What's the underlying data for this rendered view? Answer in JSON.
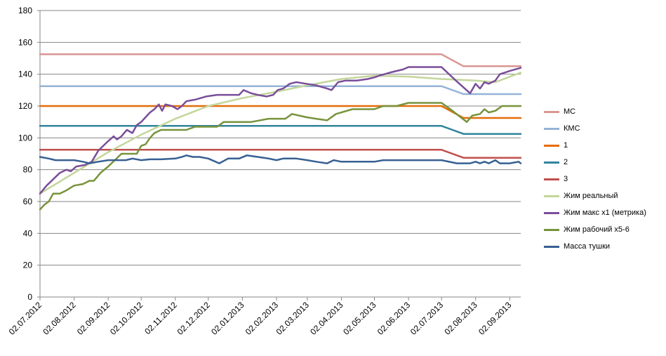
{
  "chart_data": {
    "type": "line",
    "ylim": [
      0,
      180
    ],
    "yticks": [
      0,
      20,
      40,
      60,
      80,
      100,
      120,
      140,
      160,
      180
    ],
    "x_date_range": [
      "2012-07-02",
      "2013-09-12"
    ],
    "x_tick_dates": [
      "2012-07-02",
      "2012-08-02",
      "2012-09-02",
      "2012-10-02",
      "2012-11-02",
      "2012-12-02",
      "2013-01-02",
      "2013-02-02",
      "2013-03-02",
      "2013-04-02",
      "2013-05-02",
      "2013-06-02",
      "2013-07-02",
      "2013-08-02",
      "2013-09-02"
    ],
    "x_tick_labels": [
      "02.07.2012",
      "02.08.2012",
      "02.09.2012",
      "02.10.2012",
      "02.11.2012",
      "02.12.2012",
      "02.01.2013",
      "02.02.2013",
      "02.03.2013",
      "02.04.2013",
      "02.05.2013",
      "02.06.2013",
      "02.07.2013",
      "02.08.2013",
      "02.09.2013"
    ],
    "grid": "horizontal",
    "legend_position": "right",
    "series": [
      {
        "name": "МС",
        "color": "#d99694",
        "points": [
          [
            "2012-07-02",
            152.5
          ],
          [
            "2013-07-02",
            152.5
          ],
          [
            "2013-07-22",
            145
          ],
          [
            "2013-09-12",
            145
          ]
        ]
      },
      {
        "name": "КМС",
        "color": "#95b3d7",
        "points": [
          [
            "2012-07-02",
            132.5
          ],
          [
            "2013-07-02",
            132.5
          ],
          [
            "2013-07-22",
            127.5
          ],
          [
            "2013-09-12",
            127.5
          ]
        ]
      },
      {
        "name": "1",
        "color": "#e46c0a",
        "points": [
          [
            "2012-07-02",
            120
          ],
          [
            "2013-07-02",
            120
          ],
          [
            "2013-07-22",
            112.5
          ],
          [
            "2013-09-12",
            112.5
          ]
        ]
      },
      {
        "name": "2",
        "color": "#31859c",
        "points": [
          [
            "2012-07-02",
            107.5
          ],
          [
            "2013-07-02",
            107.5
          ],
          [
            "2013-07-22",
            102.5
          ],
          [
            "2013-09-12",
            102.5
          ]
        ]
      },
      {
        "name": "3",
        "color": "#c0504d",
        "points": [
          [
            "2012-07-02",
            92.5
          ],
          [
            "2013-07-02",
            92.5
          ],
          [
            "2013-07-22",
            87.5
          ],
          [
            "2013-09-12",
            87.5
          ]
        ]
      },
      {
        "name": "Жим реальный",
        "color": "#c3d69b",
        "points": [
          [
            "2012-07-02",
            65
          ],
          [
            "2012-08-02",
            78
          ],
          [
            "2012-09-02",
            91
          ],
          [
            "2012-10-02",
            102
          ],
          [
            "2012-11-02",
            112
          ],
          [
            "2012-12-02",
            120
          ],
          [
            "2013-01-02",
            125
          ],
          [
            "2013-02-02",
            129
          ],
          [
            "2013-03-02",
            133
          ],
          [
            "2013-04-02",
            137
          ],
          [
            "2013-05-02",
            139
          ],
          [
            "2013-06-02",
            138.5
          ],
          [
            "2013-07-02",
            137
          ],
          [
            "2013-08-02",
            136
          ],
          [
            "2013-08-20",
            135
          ],
          [
            "2013-09-12",
            141
          ]
        ]
      },
      {
        "name": "Жим макс х1 (метрика)",
        "color": "#7a4e9a",
        "points": [
          [
            "2012-07-02",
            65
          ],
          [
            "2012-07-08",
            70
          ],
          [
            "2012-07-14",
            74
          ],
          [
            "2012-07-20",
            78
          ],
          [
            "2012-07-26",
            80
          ],
          [
            "2012-07-30",
            79
          ],
          [
            "2012-08-04",
            82
          ],
          [
            "2012-08-12",
            83
          ],
          [
            "2012-08-18",
            85
          ],
          [
            "2012-08-24",
            92
          ],
          [
            "2012-08-30",
            96
          ],
          [
            "2012-09-02",
            98
          ],
          [
            "2012-09-07",
            101
          ],
          [
            "2012-09-10",
            99
          ],
          [
            "2012-09-14",
            101
          ],
          [
            "2012-09-19",
            105
          ],
          [
            "2012-09-24",
            103
          ],
          [
            "2012-09-28",
            108
          ],
          [
            "2012-10-02",
            110
          ],
          [
            "2012-10-06",
            113
          ],
          [
            "2012-10-10",
            116
          ],
          [
            "2012-10-14",
            118
          ],
          [
            "2012-10-18",
            121
          ],
          [
            "2012-10-21",
            117
          ],
          [
            "2012-10-24",
            121
          ],
          [
            "2012-10-30",
            120
          ],
          [
            "2012-11-04",
            118
          ],
          [
            "2012-11-08",
            120
          ],
          [
            "2012-11-12",
            123
          ],
          [
            "2012-11-20",
            124
          ],
          [
            "2012-11-30",
            126
          ],
          [
            "2012-12-10",
            127
          ],
          [
            "2012-12-20",
            127
          ],
          [
            "2012-12-30",
            127
          ],
          [
            "2013-01-03",
            130
          ],
          [
            "2013-01-10",
            128
          ],
          [
            "2013-01-16",
            127
          ],
          [
            "2013-01-24",
            126
          ],
          [
            "2013-01-30",
            127
          ],
          [
            "2013-02-03",
            130
          ],
          [
            "2013-02-08",
            131
          ],
          [
            "2013-02-14",
            134
          ],
          [
            "2013-02-20",
            135
          ],
          [
            "2013-03-01",
            134
          ],
          [
            "2013-03-10",
            133
          ],
          [
            "2013-03-20",
            131
          ],
          [
            "2013-03-24",
            130
          ],
          [
            "2013-03-30",
            135
          ],
          [
            "2013-04-06",
            136
          ],
          [
            "2013-04-16",
            136
          ],
          [
            "2013-04-26",
            137
          ],
          [
            "2013-05-02",
            138
          ],
          [
            "2013-05-06",
            139
          ],
          [
            "2013-05-16",
            141
          ],
          [
            "2013-05-28",
            143
          ],
          [
            "2013-06-02",
            144.5
          ],
          [
            "2013-06-20",
            144.5
          ],
          [
            "2013-07-02",
            144.5
          ],
          [
            "2013-07-15",
            136
          ],
          [
            "2013-07-28",
            128
          ],
          [
            "2013-08-02",
            134
          ],
          [
            "2013-08-06",
            131
          ],
          [
            "2013-08-10",
            135
          ],
          [
            "2013-08-14",
            134
          ],
          [
            "2013-08-20",
            136
          ],
          [
            "2013-08-24",
            140
          ],
          [
            "2013-09-02",
            142
          ],
          [
            "2013-09-12",
            144
          ]
        ]
      },
      {
        "name": "Жим рабочий х5-6",
        "color": "#77933c",
        "points": [
          [
            "2012-07-02",
            55
          ],
          [
            "2012-07-06",
            58
          ],
          [
            "2012-07-10",
            60
          ],
          [
            "2012-07-14",
            65
          ],
          [
            "2012-07-20",
            65
          ],
          [
            "2012-07-26",
            67
          ],
          [
            "2012-08-02",
            70
          ],
          [
            "2012-08-10",
            71
          ],
          [
            "2012-08-16",
            73
          ],
          [
            "2012-08-20",
            73
          ],
          [
            "2012-08-26",
            78
          ],
          [
            "2012-09-02",
            82
          ],
          [
            "2012-09-08",
            86
          ],
          [
            "2012-09-14",
            90
          ],
          [
            "2012-09-20",
            90
          ],
          [
            "2012-09-28",
            90
          ],
          [
            "2012-10-02",
            95
          ],
          [
            "2012-10-06",
            96
          ],
          [
            "2012-10-10",
            100
          ],
          [
            "2012-10-14",
            103
          ],
          [
            "2012-10-20",
            105
          ],
          [
            "2012-11-02",
            105
          ],
          [
            "2012-11-12",
            105
          ],
          [
            "2012-11-20",
            107
          ],
          [
            "2012-12-02",
            107
          ],
          [
            "2012-12-10",
            107
          ],
          [
            "2012-12-16",
            110
          ],
          [
            "2013-01-02",
            110
          ],
          [
            "2013-01-10",
            110
          ],
          [
            "2013-01-26",
            112
          ],
          [
            "2013-02-02",
            112
          ],
          [
            "2013-02-10",
            112
          ],
          [
            "2013-02-16",
            115
          ],
          [
            "2013-03-01",
            113
          ],
          [
            "2013-03-10",
            112
          ],
          [
            "2013-03-20",
            111
          ],
          [
            "2013-03-28",
            115
          ],
          [
            "2013-04-02",
            116
          ],
          [
            "2013-04-12",
            118
          ],
          [
            "2013-04-22",
            118
          ],
          [
            "2013-05-02",
            118
          ],
          [
            "2013-05-10",
            120
          ],
          [
            "2013-05-22",
            120
          ],
          [
            "2013-06-02",
            122
          ],
          [
            "2013-06-16",
            122
          ],
          [
            "2013-07-02",
            122
          ],
          [
            "2013-07-10",
            118
          ],
          [
            "2013-07-25",
            110
          ],
          [
            "2013-07-30",
            114
          ],
          [
            "2013-08-06",
            115
          ],
          [
            "2013-08-10",
            118
          ],
          [
            "2013-08-14",
            116
          ],
          [
            "2013-08-20",
            117
          ],
          [
            "2013-08-26",
            120
          ],
          [
            "2013-09-12",
            120
          ]
        ]
      },
      {
        "name": "Масса тушки",
        "color": "#376092",
        "points": [
          [
            "2012-07-02",
            88
          ],
          [
            "2012-07-10",
            87
          ],
          [
            "2012-07-16",
            86
          ],
          [
            "2012-07-24",
            86
          ],
          [
            "2012-08-02",
            86
          ],
          [
            "2012-08-10",
            85
          ],
          [
            "2012-08-16",
            84
          ],
          [
            "2012-08-24",
            85
          ],
          [
            "2012-09-02",
            86
          ],
          [
            "2012-09-10",
            86
          ],
          [
            "2012-09-18",
            86
          ],
          [
            "2012-09-24",
            87
          ],
          [
            "2012-10-02",
            86
          ],
          [
            "2012-10-10",
            86.5
          ],
          [
            "2012-10-20",
            86.5
          ],
          [
            "2012-11-02",
            87
          ],
          [
            "2012-11-08",
            88
          ],
          [
            "2012-11-12",
            89
          ],
          [
            "2012-11-18",
            88
          ],
          [
            "2012-11-24",
            88
          ],
          [
            "2012-12-02",
            87
          ],
          [
            "2012-12-12",
            84
          ],
          [
            "2012-12-20",
            87
          ],
          [
            "2012-12-30",
            87
          ],
          [
            "2013-01-06",
            89
          ],
          [
            "2013-01-16",
            88
          ],
          [
            "2013-01-26",
            87
          ],
          [
            "2013-02-02",
            86
          ],
          [
            "2013-02-08",
            87
          ],
          [
            "2013-02-20",
            87
          ],
          [
            "2013-03-02",
            86
          ],
          [
            "2013-03-10",
            85
          ],
          [
            "2013-03-20",
            84
          ],
          [
            "2013-03-26",
            86
          ],
          [
            "2013-04-02",
            85
          ],
          [
            "2013-04-10",
            85
          ],
          [
            "2013-04-20",
            85
          ],
          [
            "2013-05-02",
            85
          ],
          [
            "2013-05-10",
            86
          ],
          [
            "2013-05-20",
            86
          ],
          [
            "2013-06-02",
            86
          ],
          [
            "2013-06-16",
            86
          ],
          [
            "2013-07-02",
            86
          ],
          [
            "2013-07-16",
            84
          ],
          [
            "2013-07-28",
            84
          ],
          [
            "2013-08-02",
            85
          ],
          [
            "2013-08-06",
            84
          ],
          [
            "2013-08-10",
            85
          ],
          [
            "2013-08-14",
            84
          ],
          [
            "2013-08-20",
            86
          ],
          [
            "2013-08-24",
            84
          ],
          [
            "2013-09-02",
            84
          ],
          [
            "2013-09-10",
            85
          ],
          [
            "2013-09-12",
            84
          ]
        ]
      }
    ]
  }
}
